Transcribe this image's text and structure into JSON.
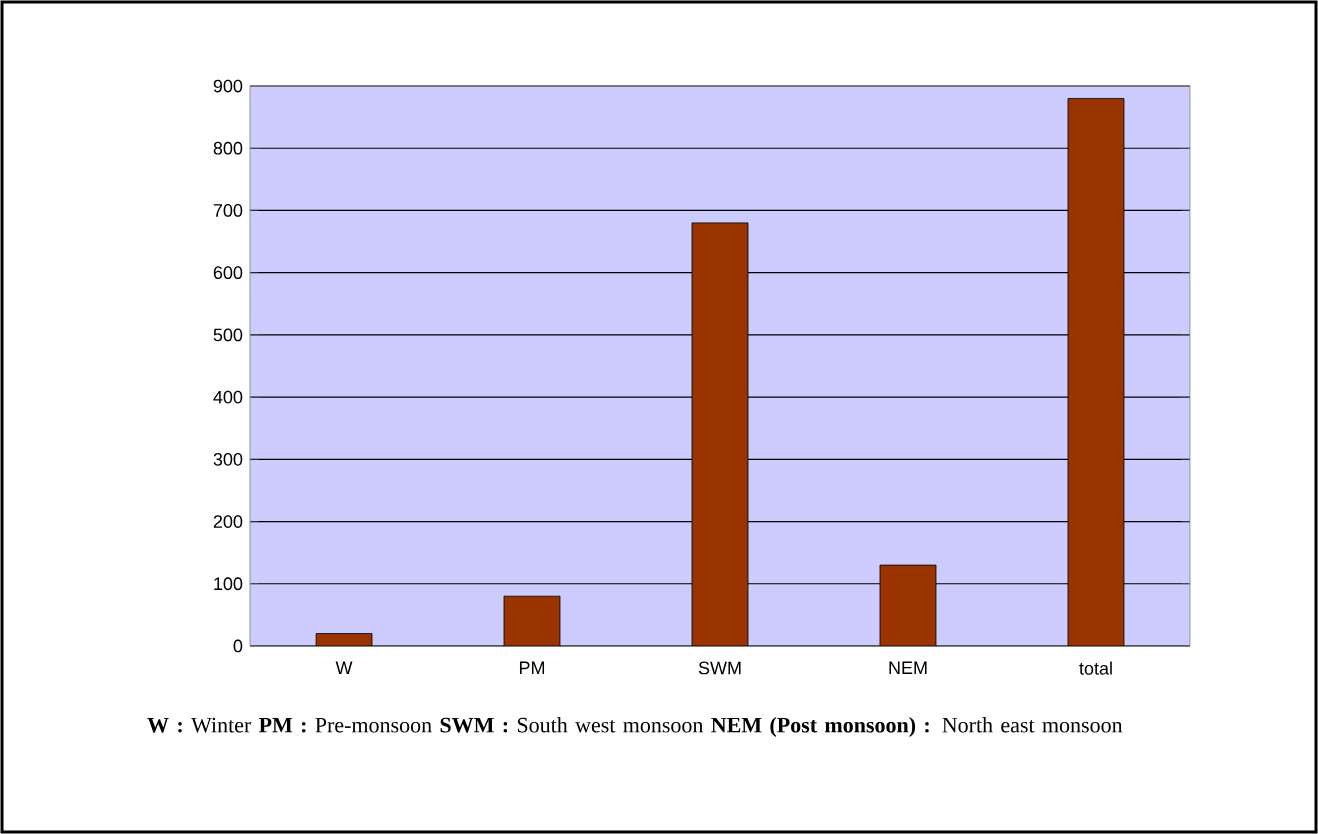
{
  "chart_data": {
    "type": "bar",
    "categories": [
      "W",
      "PM",
      "SWM",
      "NEM",
      "total"
    ],
    "values": [
      20,
      80,
      680,
      130,
      880
    ],
    "color": "#993300",
    "ylim": [
      0,
      900
    ],
    "yticks": [
      0,
      100,
      200,
      300,
      400,
      500,
      600,
      700,
      800,
      900
    ],
    "grid": "y",
    "annotations": [
      "**W :** Winter   **PM :** Pre-monsoon   **SWM :** South west monsoon   **NEM (Post monsoon) :** North east monsoon"
    ]
  }
}
